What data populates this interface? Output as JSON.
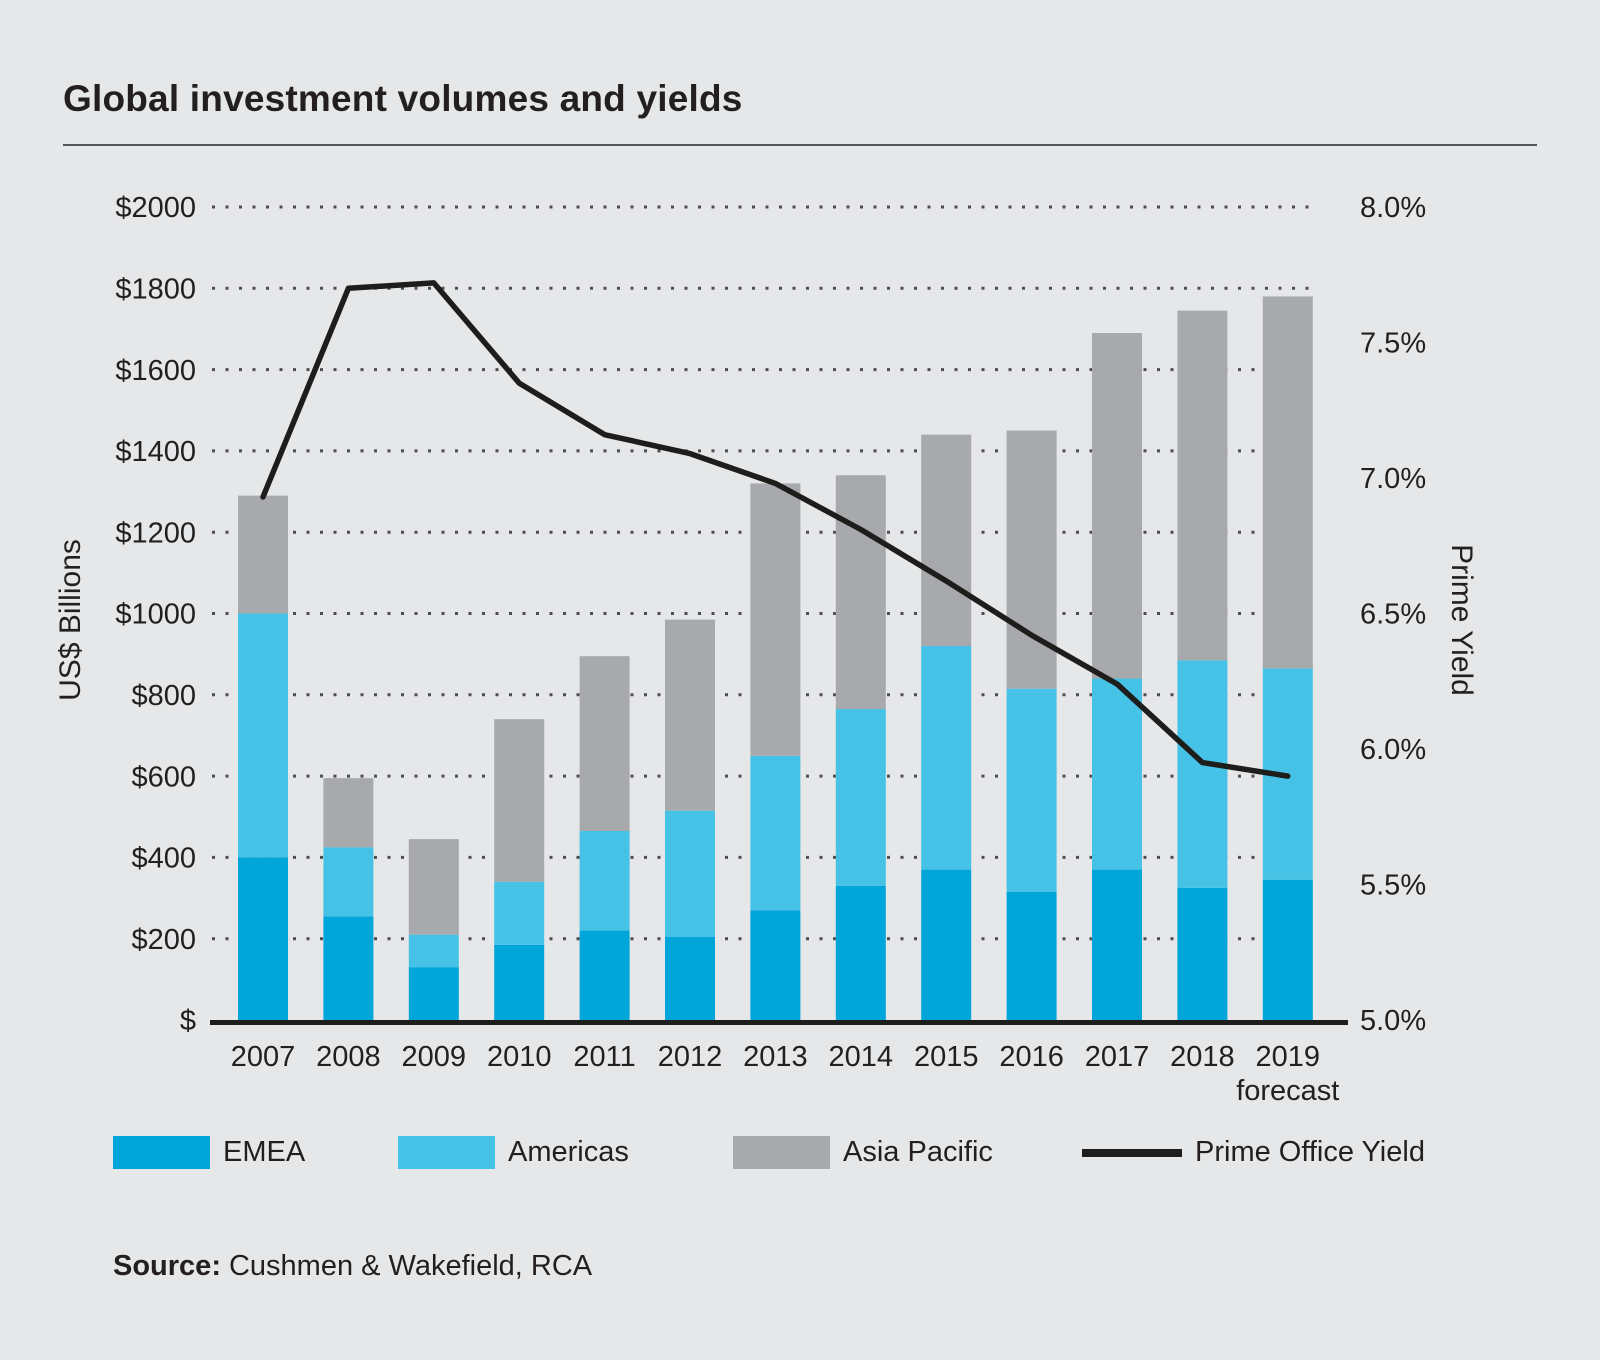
{
  "title": "Global investment volumes and yields",
  "source": {
    "label": "Source:",
    "text": "Cushmen & Wakefield, RCA"
  },
  "colors": {
    "background": "#e6e7e8",
    "text": "#231f20",
    "grid_dots": "#4d4e50",
    "axis_line": "#1d1d1b",
    "emea": "#00a5da",
    "americas": "#47c2e7",
    "asia_pacific": "#a7a9ac",
    "yield_line": "#1d1d1b"
  },
  "chart_data": {
    "type": "bar",
    "subtype": "stacked-bars-with-line",
    "title": "Global investment volumes and yields",
    "categories": [
      "2007",
      "2008",
      "2009",
      "2010",
      "2011",
      "2012",
      "2013",
      "2014",
      "2015",
      "2016",
      "2017",
      "2018",
      "2019"
    ],
    "x_note": {
      "category": "2019",
      "label": "forecast"
    },
    "series": [
      {
        "name": "EMEA",
        "type": "bar",
        "color": "#00a5da",
        "values": [
          400,
          255,
          130,
          185,
          220,
          205,
          270,
          330,
          370,
          315,
          370,
          325,
          345
        ]
      },
      {
        "name": "Americas",
        "type": "bar",
        "color": "#47c2e7",
        "values": [
          600,
          170,
          80,
          155,
          245,
          310,
          380,
          435,
          550,
          500,
          470,
          560,
          520
        ]
      },
      {
        "name": "Asia Pacific",
        "type": "bar",
        "color": "#a7a9ac",
        "values": [
          290,
          170,
          235,
          400,
          430,
          470,
          670,
          575,
          520,
          635,
          850,
          860,
          915
        ]
      },
      {
        "name": "Prime Office Yield",
        "type": "line",
        "axis": "right",
        "color": "#1d1d1b",
        "values": [
          6.93,
          7.7,
          7.72,
          7.35,
          7.16,
          7.09,
          6.98,
          6.81,
          6.62,
          6.42,
          6.24,
          5.95,
          5.9
        ]
      }
    ],
    "bar_totals": [
      1290,
      595,
      445,
      740,
      895,
      985,
      1320,
      1340,
      1440,
      1450,
      1690,
      1745,
      1780
    ],
    "left_axis": {
      "label": "US$ Billions",
      "min": 0,
      "max": 2000,
      "step": 200,
      "ticks": [
        "$2000",
        "$1800",
        "$1600",
        "$1400",
        "$1200",
        "$1000",
        "$800",
        "$600",
        "$400",
        "$200",
        "$"
      ]
    },
    "right_axis": {
      "label": "Prime Yield",
      "min": 5.0,
      "max": 8.0,
      "step": 0.5,
      "ticks": [
        "8.0%",
        "7.5%",
        "7.0%",
        "6.5%",
        "6.0%",
        "5.5%",
        "5.0%"
      ]
    },
    "grid": "dotted horizontal",
    "legend_position": "bottom"
  },
  "legend": [
    {
      "label": "EMEA",
      "swatch": "rect",
      "color": "#00a5da"
    },
    {
      "label": "Americas",
      "swatch": "rect",
      "color": "#47c2e7"
    },
    {
      "label": "Asia Pacific",
      "swatch": "rect",
      "color": "#a7a9ac"
    },
    {
      "label": "Prime Office Yield",
      "swatch": "line",
      "color": "#1d1d1b"
    }
  ]
}
